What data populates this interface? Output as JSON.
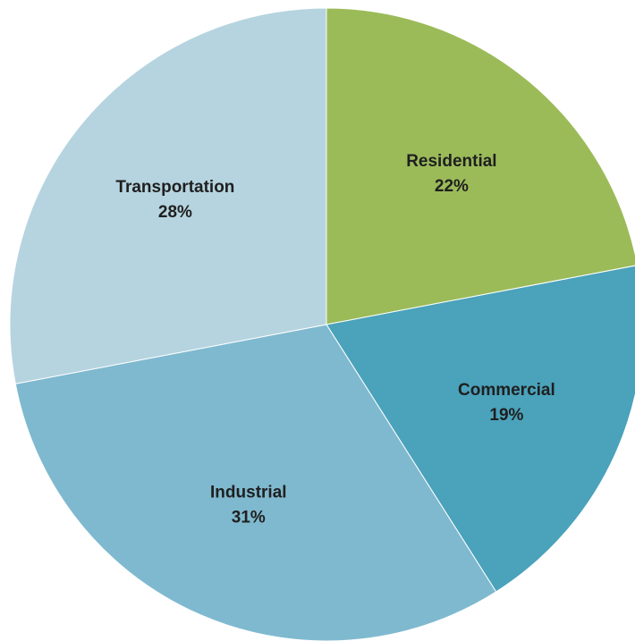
{
  "chart_data": {
    "type": "pie",
    "start_angle_deg": 0,
    "direction": "clockwise",
    "slices": [
      {
        "label": "Residential",
        "value": 22,
        "value_label": "22%",
        "color": "#9bbb59"
      },
      {
        "label": "Commercial",
        "value": 19,
        "value_label": "19%",
        "color": "#4aa2bb"
      },
      {
        "label": "Industrial",
        "value": 31,
        "value_label": "31%",
        "color": "#7fb9cf"
      },
      {
        "label": "Transportation",
        "value": 28,
        "value_label": "28%",
        "color": "#b6d4e0"
      }
    ]
  }
}
